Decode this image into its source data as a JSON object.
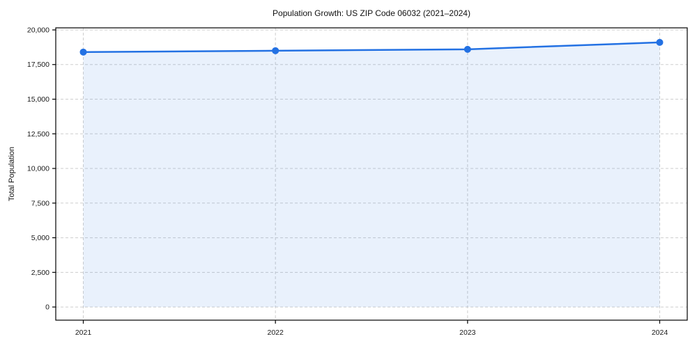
{
  "chart_data": {
    "type": "line",
    "title": "Population Growth: US ZIP Code 06032 (2021–2024)",
    "xlabel": "",
    "ylabel": "Total Population",
    "x": [
      2021,
      2022,
      2023,
      2024
    ],
    "series": [
      {
        "name": "Total Population",
        "values": [
          18400,
          18500,
          18600,
          19100
        ]
      }
    ],
    "ylim": [
      -950,
      20150
    ],
    "yticks": [
      0,
      2500,
      5000,
      7500,
      10000,
      12500,
      15000,
      17500,
      20000
    ],
    "xticks": [
      "2021",
      "2022",
      "2023",
      "2024"
    ],
    "grid": "dashed, horizontal and vertical",
    "legend": "none",
    "area_fill_to_zero": true,
    "colors": {
      "line": "#2371e3",
      "marker": "#2371e3",
      "area_fill": "#2371e3",
      "area_fill_opacity": 0.1,
      "grid": "#c9c9c9",
      "spine": "#000000",
      "tick_label": "#191919",
      "background": "#ffffff"
    }
  }
}
